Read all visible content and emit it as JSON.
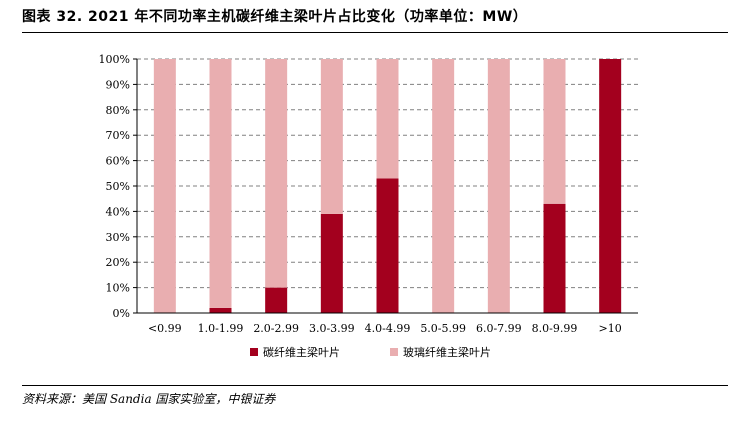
{
  "figure": {
    "title": "图表 32. 2021 年不同功率主机碳纤维主梁叶片占比变化（功率单位：MW）",
    "source": "资料来源：美国 Sandia 国家实验室，中银证券"
  },
  "colors": {
    "carbon": "#a3001e",
    "glass": "#e9aeb0",
    "grid": "#808080"
  },
  "chart_data": {
    "type": "bar",
    "stacked": true,
    "percent": true,
    "categories": [
      "<0.99",
      "1.0-1.99",
      "2.0-2.99",
      "3.0-3.99",
      "4.0-4.99",
      "5.0-5.99",
      "6.0-7.99",
      "8.0-9.99",
      ">10"
    ],
    "series": [
      {
        "name": "碳纤维主梁叶片",
        "values": [
          0,
          2,
          10,
          39,
          53,
          0,
          0,
          43,
          100
        ]
      },
      {
        "name": "玻璃纤维主梁叶片",
        "values": [
          100,
          98,
          90,
          61,
          47,
          100,
          100,
          57,
          0
        ]
      }
    ],
    "ylim": [
      0,
      100
    ],
    "yticks": [
      "0%",
      "10%",
      "20%",
      "30%",
      "40%",
      "50%",
      "60%",
      "70%",
      "80%",
      "90%",
      "100%"
    ],
    "grid": true,
    "legend": "bottom"
  }
}
